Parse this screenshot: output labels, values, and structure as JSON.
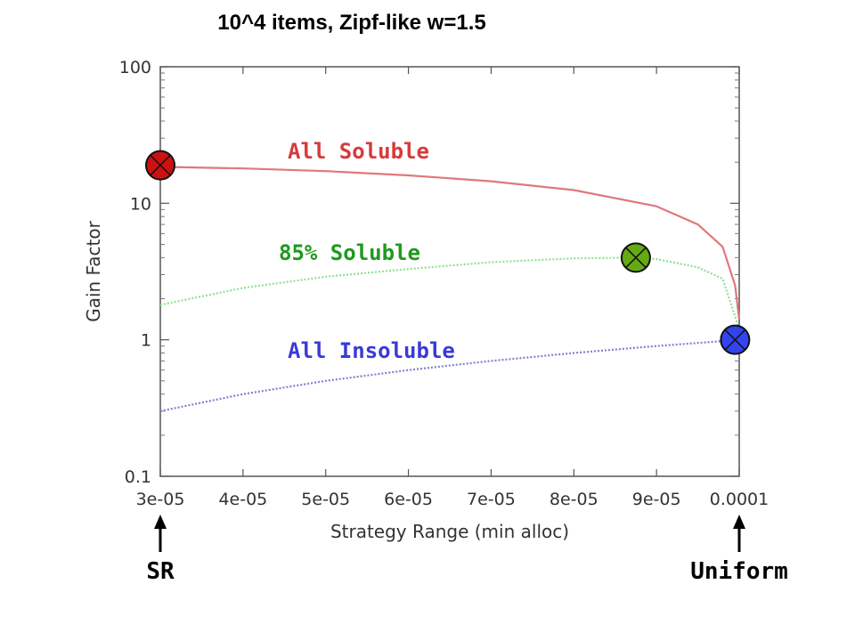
{
  "chart_data": {
    "type": "line",
    "title": "10^4 items, Zipf-like w=1.5",
    "xlabel": "Strategy Range (min alloc)",
    "ylabel": "Gain Factor",
    "xlim": [
      3e-05,
      0.0001
    ],
    "ylim": [
      0.1,
      100
    ],
    "yscale": "log",
    "x_ticks": [
      "3e-05",
      "4e-05",
      "5e-05",
      "6e-05",
      "7e-05",
      "8e-05",
      "9e-05",
      "0.0001"
    ],
    "x_tick_values": [
      3e-05,
      4e-05,
      5e-05,
      6e-05,
      7e-05,
      8e-05,
      9e-05,
      0.0001
    ],
    "y_ticks": [
      "0.1",
      "1",
      "10",
      "100"
    ],
    "y_tick_values": [
      0.1,
      1,
      10,
      100
    ],
    "grid": false,
    "series": [
      {
        "name": "All Soluble",
        "color": "#d63a3a",
        "line_color": "#e0787a",
        "style": "solid",
        "x": [
          3e-05,
          4e-05,
          5e-05,
          6e-05,
          7e-05,
          8e-05,
          9e-05,
          9.5e-05,
          9.8e-05,
          9.95e-05,
          0.0001
        ],
        "y": [
          18.5,
          18.0,
          17.2,
          16.0,
          14.5,
          12.5,
          9.5,
          7.0,
          4.8,
          2.5,
          1.4
        ]
      },
      {
        "name": "85% Soluble",
        "color": "#1e9a1e",
        "line_color": "#8fe08f",
        "style": "dotted",
        "x": [
          3e-05,
          4e-05,
          5e-05,
          6e-05,
          7e-05,
          8e-05,
          8.7e-05,
          9e-05,
          9.5e-05,
          9.8e-05,
          0.0001
        ],
        "y": [
          1.8,
          2.4,
          2.9,
          3.3,
          3.7,
          3.95,
          4.0,
          3.9,
          3.4,
          2.8,
          1.2
        ]
      },
      {
        "name": "All Insoluble",
        "color": "#3a3ad6",
        "line_color": "#8080d0",
        "style": "dotted",
        "x": [
          3e-05,
          4e-05,
          5e-05,
          6e-05,
          7e-05,
          8e-05,
          9e-05,
          0.0001
        ],
        "y": [
          0.3,
          0.4,
          0.5,
          0.6,
          0.7,
          0.8,
          0.9,
          1.0
        ]
      }
    ],
    "markers": [
      {
        "series": "All Soluble",
        "x": 3e-05,
        "y": 19.0,
        "fill": "#cc1111"
      },
      {
        "series": "85% Soluble",
        "x": 8.75e-05,
        "y": 4.0,
        "fill": "#66aa11"
      },
      {
        "series": "All Insoluble",
        "x": 9.95e-05,
        "y": 1.0,
        "fill": "#3344ee"
      }
    ],
    "bottom_labels": [
      {
        "text": "SR",
        "x": 3e-05
      },
      {
        "text": "Uniform",
        "x": 0.0001
      }
    ]
  }
}
